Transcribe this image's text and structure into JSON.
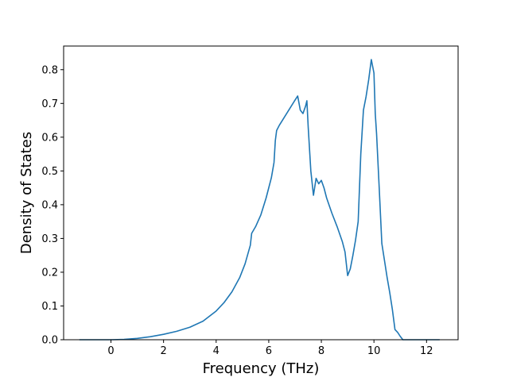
{
  "chart_data": {
    "type": "line",
    "title": "",
    "xlabel": "Frequency (THz)",
    "ylabel": "Density of States",
    "xlim": [
      -1.8,
      13.2
    ],
    "ylim": [
      0.0,
      0.87
    ],
    "x_ticks": [
      0,
      2,
      4,
      6,
      8,
      10,
      12
    ],
    "y_ticks": [
      0.0,
      0.1,
      0.2,
      0.3,
      0.4,
      0.5,
      0.6,
      0.7,
      0.8
    ],
    "x_tick_labels": [
      "0",
      "2",
      "4",
      "6",
      "8",
      "10",
      "12"
    ],
    "y_tick_labels": [
      "0.0",
      "0.1",
      "0.2",
      "0.3",
      "0.4",
      "0.5",
      "0.6",
      "0.7",
      "0.8"
    ],
    "grid": false,
    "legend": "none",
    "color": "#1f77b4",
    "series": [
      {
        "x": [
          -1.2,
          -0.5,
          0.0,
          0.5,
          1.0,
          1.5,
          2.0,
          2.5,
          3.0,
          3.5,
          4.0,
          4.3,
          4.6,
          4.9,
          5.1,
          5.3,
          5.35,
          5.5,
          5.7,
          5.9,
          6.1,
          6.2,
          6.25,
          6.3,
          6.4,
          6.6,
          6.8,
          7.0,
          7.1,
          7.2,
          7.3,
          7.4,
          7.45,
          7.5,
          7.6,
          7.7,
          7.8,
          7.9,
          8.0,
          8.1,
          8.2,
          8.4,
          8.6,
          8.8,
          8.9,
          9.0,
          9.1,
          9.2,
          9.3,
          9.4,
          9.5,
          9.6,
          9.7,
          9.8,
          9.9,
          10.0,
          10.05,
          10.1,
          10.2,
          10.3,
          10.4,
          10.5,
          10.6,
          10.7,
          10.8,
          10.9,
          11.0,
          11.1,
          11.3,
          11.4,
          11.6,
          12.0,
          12.5
        ],
        "y": [
          0.0,
          0.0,
          0.0,
          0.001,
          0.004,
          0.009,
          0.016,
          0.025,
          0.037,
          0.055,
          0.085,
          0.11,
          0.142,
          0.185,
          0.225,
          0.28,
          0.315,
          0.335,
          0.37,
          0.42,
          0.48,
          0.525,
          0.59,
          0.62,
          0.635,
          0.66,
          0.685,
          0.71,
          0.722,
          0.68,
          0.67,
          0.692,
          0.708,
          0.63,
          0.5,
          0.428,
          0.478,
          0.462,
          0.472,
          0.45,
          0.42,
          0.375,
          0.335,
          0.29,
          0.26,
          0.19,
          0.21,
          0.25,
          0.295,
          0.35,
          0.55,
          0.68,
          0.72,
          0.77,
          0.83,
          0.79,
          0.67,
          0.61,
          0.45,
          0.285,
          0.235,
          0.185,
          0.14,
          0.09,
          0.03,
          0.022,
          0.01,
          0.0,
          0.0,
          0.0,
          0.0,
          0.0,
          0.0
        ]
      }
    ]
  }
}
